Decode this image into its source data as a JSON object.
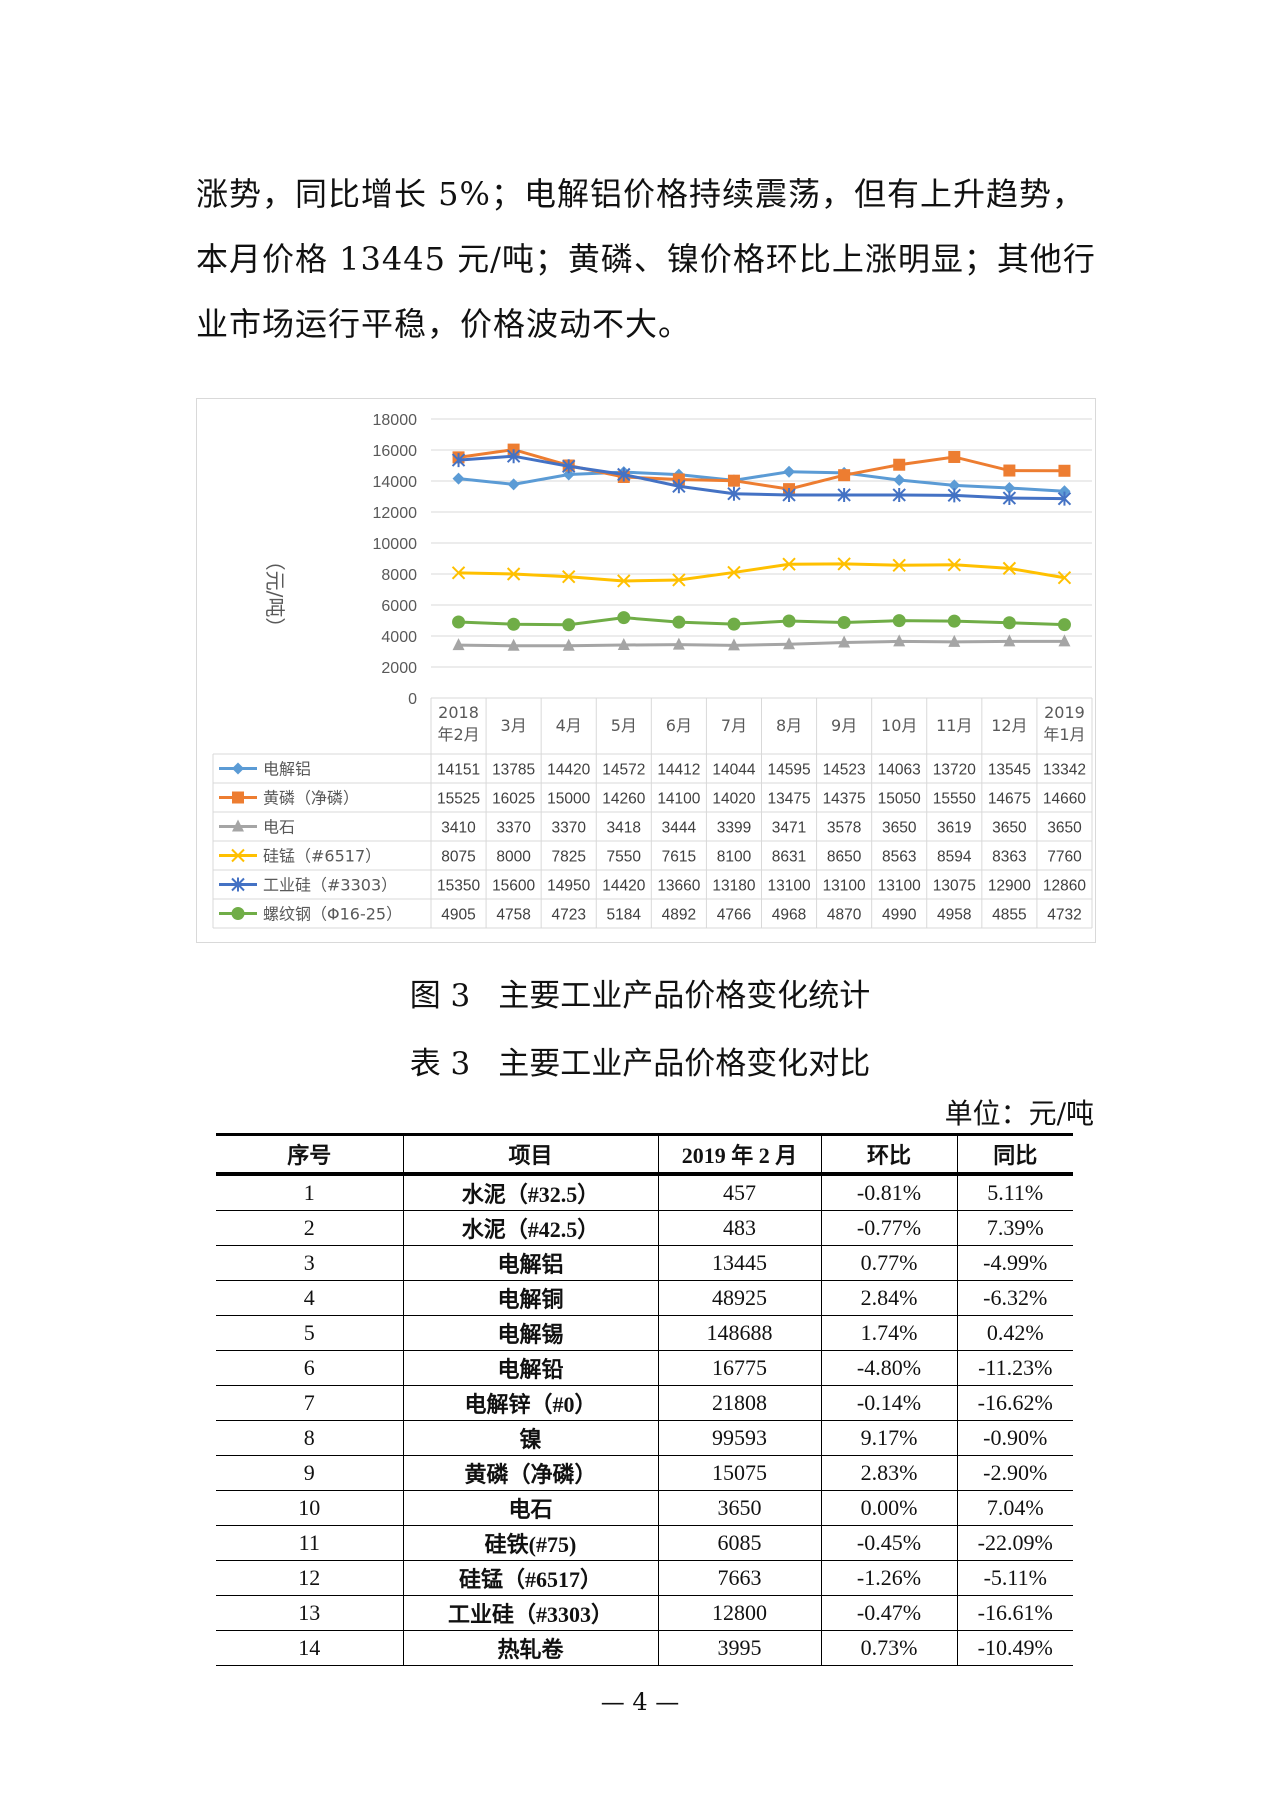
{
  "paragraph": {
    "lines": [
      "涨势，同比增长 5%；电解铝价格持续震荡，但有上升趋势，",
      "本月价格 13445 元/吨；黄磷、镍价格环比上涨明显；其他行",
      "业市场运行平稳，价格波动不大。"
    ]
  },
  "chart_data": {
    "type": "line",
    "title": "",
    "ylabel": "（元/吨）",
    "xlabel": "",
    "ylim": [
      0,
      18000
    ],
    "yticks": [
      0,
      2000,
      4000,
      6000,
      8000,
      10000,
      12000,
      14000,
      16000,
      18000
    ],
    "grid": true,
    "legend": "data-table-left",
    "categories": [
      [
        "2018",
        "年2月"
      ],
      [
        "3月"
      ],
      [
        "4月"
      ],
      [
        "5月"
      ],
      [
        "6月"
      ],
      [
        "7月"
      ],
      [
        "8月"
      ],
      [
        "9月"
      ],
      [
        "10月"
      ],
      [
        "11月"
      ],
      [
        "12月"
      ],
      [
        "2019",
        "年1月"
      ]
    ],
    "series": [
      {
        "name": "电解铝",
        "color": "#5B9BD5",
        "marker": "diamond",
        "values": [
          14151,
          13785,
          14420,
          14572,
          14412,
          14044,
          14595,
          14523,
          14063,
          13720,
          13545,
          13342
        ]
      },
      {
        "name": "黄磷（净磷）",
        "color": "#ED7D31",
        "marker": "square",
        "values": [
          15525,
          16025,
          15000,
          14260,
          14100,
          14020,
          13475,
          14375,
          15050,
          15550,
          14675,
          14660
        ]
      },
      {
        "name": "电石",
        "color": "#A5A5A5",
        "marker": "triangle",
        "values": [
          3410,
          3370,
          3370,
          3418,
          3444,
          3399,
          3471,
          3578,
          3650,
          3619,
          3650,
          3650
        ]
      },
      {
        "name": "硅锰（#6517）",
        "color": "#FFC000",
        "marker": "x",
        "values": [
          8075,
          8000,
          7825,
          7550,
          7615,
          8100,
          8631,
          8650,
          8563,
          8594,
          8363,
          7760
        ]
      },
      {
        "name": "工业硅（#3303）",
        "color": "#4472C4",
        "marker": "star",
        "values": [
          15350,
          15600,
          14950,
          14420,
          13660,
          13180,
          13100,
          13100,
          13100,
          13075,
          12900,
          12860
        ]
      },
      {
        "name": "螺纹钢（Φ16-25）",
        "color": "#70AD47",
        "marker": "circle",
        "values": [
          4905,
          4758,
          4723,
          5184,
          4892,
          4766,
          4968,
          4870,
          4990,
          4958,
          4855,
          4732
        ]
      }
    ]
  },
  "figure_caption": {
    "label": "图 3",
    "text": "主要工业产品价格变化统计"
  },
  "table_caption": {
    "label": "表 3",
    "text": "主要工业产品价格变化对比"
  },
  "table_unit": "单位：元/吨",
  "table": {
    "headers": [
      "序号",
      "项目",
      "2019 年 2 月",
      "环比",
      "同比"
    ],
    "rows": [
      [
        "1",
        "水泥（#32.5）",
        "457",
        "-0.81%",
        "5.11%"
      ],
      [
        "2",
        "水泥（#42.5）",
        "483",
        "-0.77%",
        "7.39%"
      ],
      [
        "3",
        "电解铝",
        "13445",
        "0.77%",
        "-4.99%"
      ],
      [
        "4",
        "电解铜",
        "48925",
        "2.84%",
        "-6.32%"
      ],
      [
        "5",
        "电解锡",
        "148688",
        "1.74%",
        "0.42%"
      ],
      [
        "6",
        "电解铅",
        "16775",
        "-4.80%",
        "-11.23%"
      ],
      [
        "7",
        "电解锌（#0）",
        "21808",
        "-0.14%",
        "-16.62%"
      ],
      [
        "8",
        "镍",
        "99593",
        "9.17%",
        "-0.90%"
      ],
      [
        "9",
        "黄磷（净磷）",
        "15075",
        "2.83%",
        "-2.90%"
      ],
      [
        "10",
        "电石",
        "3650",
        "0.00%",
        "7.04%"
      ],
      [
        "11",
        "硅铁(#75)",
        "6085",
        "-0.45%",
        "-22.09%"
      ],
      [
        "12",
        "硅锰（#6517）",
        "7663",
        "-1.26%",
        "-5.11%"
      ],
      [
        "13",
        "工业硅（#3303）",
        "12800",
        "-0.47%",
        "-16.61%"
      ],
      [
        "14",
        "热轧卷",
        "3995",
        "0.73%",
        "-10.49%"
      ]
    ]
  },
  "footer": {
    "page": "— 4 —"
  }
}
